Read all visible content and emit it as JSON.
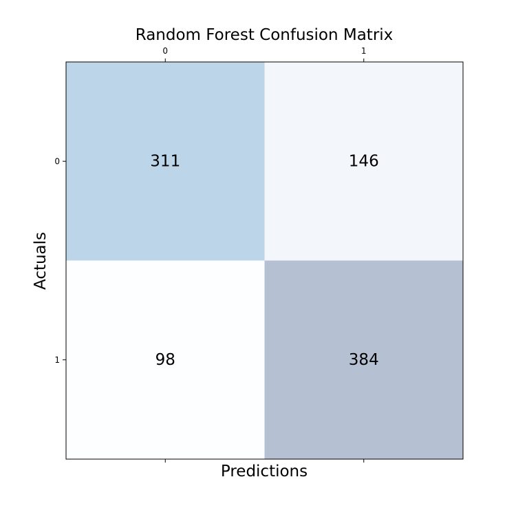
{
  "chart_data": {
    "type": "heatmap",
    "title": "Random Forest Confusion Matrix",
    "xlabel": "Predictions",
    "ylabel": "Actuals",
    "x_categories": [
      "0",
      "1"
    ],
    "y_categories": [
      "0",
      "1"
    ],
    "values": [
      [
        311,
        146
      ],
      [
        98,
        384
      ]
    ],
    "colormap": "Blues",
    "cell_alpha": 0.3,
    "x_axis_position": "top",
    "grid": false
  }
}
